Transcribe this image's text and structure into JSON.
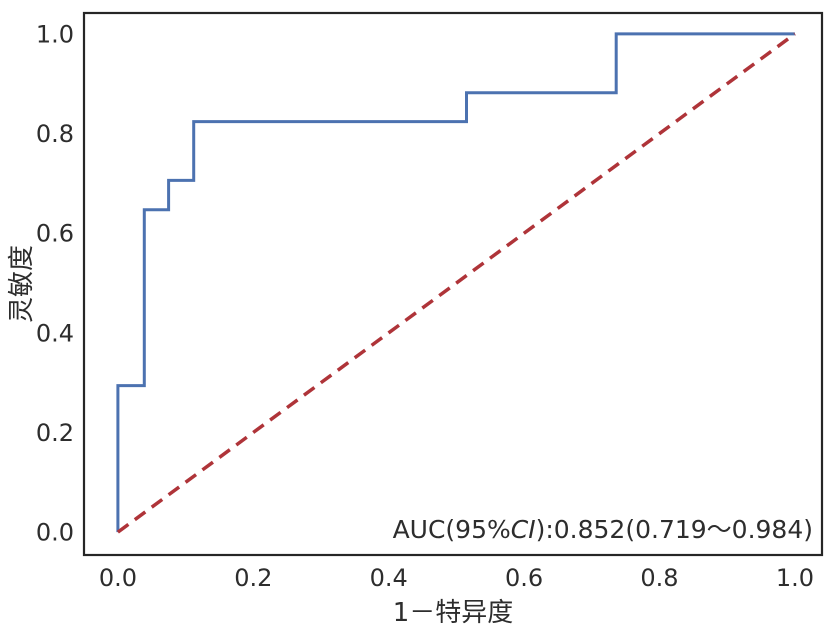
{
  "chart_data": {
    "type": "line",
    "title": "",
    "xlabel": "1－特异度",
    "ylabel": "灵敏度",
    "x_ticks": [
      "0.0",
      "0.2",
      "0.4",
      "0.6",
      "0.8",
      "1.0"
    ],
    "y_ticks": [
      "0.0",
      "0.2",
      "0.4",
      "0.6",
      "0.8",
      "1.0"
    ],
    "xlim": [
      -0.05,
      1.04
    ],
    "ylim": [
      -0.046,
      1.042
    ],
    "grid": false,
    "legend_position": "none",
    "annotation": {
      "prefix": "AUC(95%",
      "italic": "CI",
      "suffix": "):0.852(0.719～0.984)",
      "auc": 0.852,
      "ci_low": 0.719,
      "ci_high": 0.984
    },
    "series": [
      {
        "name": "ROC curve",
        "color": "#4C72B0",
        "style": "solid",
        "x": [
          0,
          0,
          0.039,
          0.039,
          0.075,
          0.075,
          0.112,
          0.112,
          0.515,
          0.515,
          0.736,
          0.736,
          1.0
        ],
        "y": [
          0,
          0.294,
          0.294,
          0.647,
          0.647,
          0.706,
          0.706,
          0.824,
          0.824,
          0.882,
          0.882,
          1.0,
          1.0
        ]
      },
      {
        "name": "reference diagonal",
        "color": "#AF3439",
        "style": "dashed",
        "x": [
          0,
          1
        ],
        "y": [
          0,
          1
        ]
      }
    ],
    "colors": {
      "roc_line": "#4C72B0",
      "reference_line": "#AF3439",
      "spine": "#262626",
      "text": "#2d2d2d",
      "background": "#ffffff"
    }
  }
}
